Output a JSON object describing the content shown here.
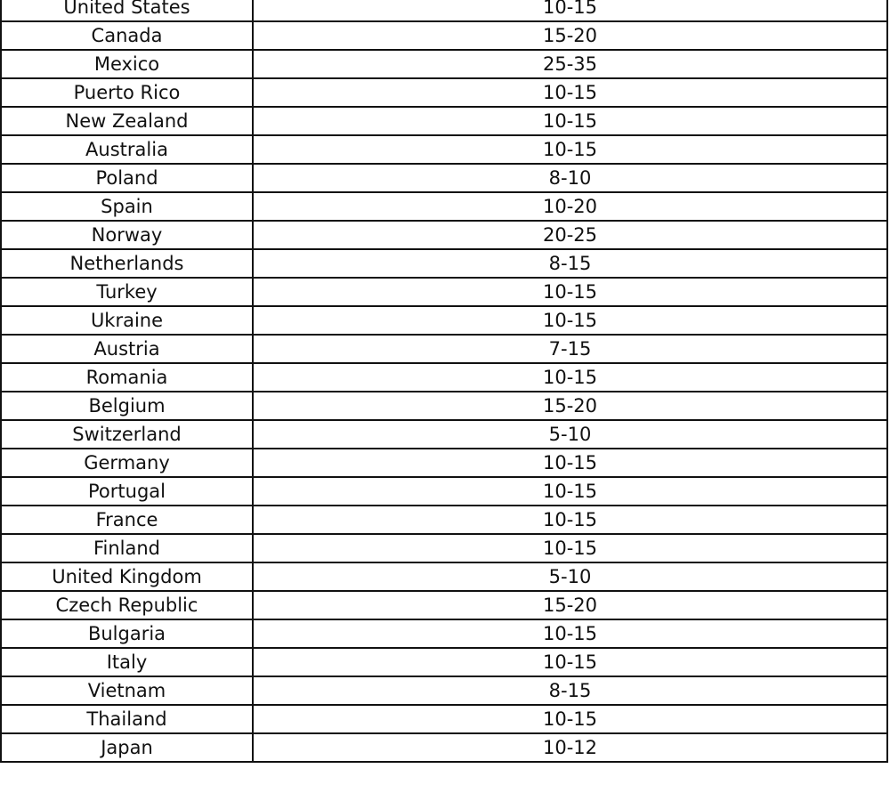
{
  "table": {
    "rows": [
      [
        "United States",
        "10-15"
      ],
      [
        "Canada",
        "15-20"
      ],
      [
        "Mexico",
        "25-35"
      ],
      [
        "Puerto Rico",
        "10-15"
      ],
      [
        "New Zealand",
        "10-15"
      ],
      [
        "Australia",
        "10-15"
      ],
      [
        "Poland",
        "8-10"
      ],
      [
        "Spain",
        "10-20"
      ],
      [
        "Norway",
        "20-25"
      ],
      [
        "Netherlands",
        "8-15"
      ],
      [
        "Turkey",
        "10-15"
      ],
      [
        "Ukraine",
        "10-15"
      ],
      [
        "Austria",
        "7-15"
      ],
      [
        "Romania",
        "10-15"
      ],
      [
        "Belgium",
        "15-20"
      ],
      [
        "Switzerland",
        "5-10"
      ],
      [
        "Germany",
        "10-15"
      ],
      [
        "Portugal",
        "10-15"
      ],
      [
        "France",
        "10-15"
      ],
      [
        "Finland",
        "10-15"
      ],
      [
        "United Kingdom",
        "5-10"
      ],
      [
        "Czech Republic",
        "15-20"
      ],
      [
        "Bulgaria",
        "10-15"
      ],
      [
        "Italy",
        "10-15"
      ],
      [
        "Vietnam",
        "8-15"
      ],
      [
        "Thailand",
        "10-15"
      ],
      [
        "Japan",
        "10-12"
      ]
    ]
  }
}
